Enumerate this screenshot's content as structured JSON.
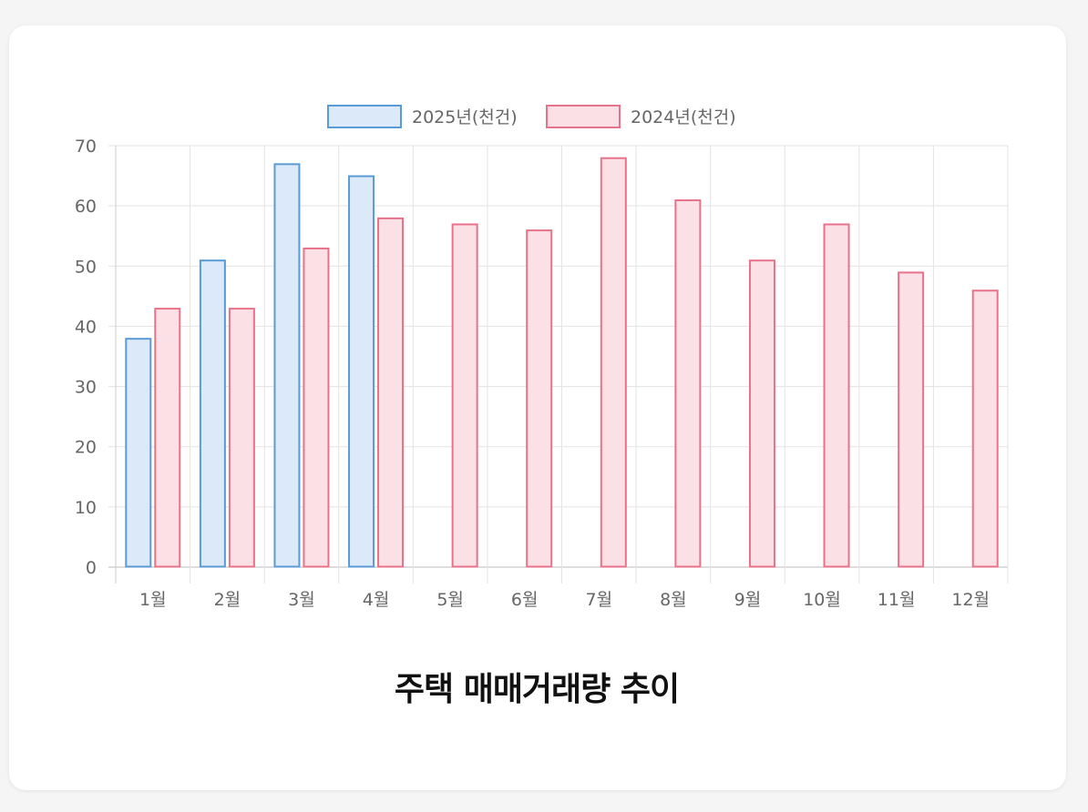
{
  "colors": {
    "series_2025_border": "#5b9bd5",
    "series_2025_fill": "#dbe9f8",
    "series_2024_border": "#e8728a",
    "series_2024_fill": "#fbe1e6",
    "grid": "#e3e3e3",
    "axis": "#cccccc",
    "tick_text": "#666666"
  },
  "chart_data": {
    "type": "bar",
    "title": "주택 매매거래량 추이",
    "categories": [
      "1월",
      "2월",
      "3월",
      "4월",
      "5월",
      "6월",
      "7월",
      "8월",
      "9월",
      "10월",
      "11월",
      "12월"
    ],
    "series": [
      {
        "name": "2025년(천건)",
        "values": [
          38,
          51,
          67,
          65,
          null,
          null,
          null,
          null,
          null,
          null,
          null,
          null
        ]
      },
      {
        "name": "2024년(천건)",
        "values": [
          43,
          43,
          53,
          58,
          57,
          56,
          68,
          61,
          51,
          57,
          49,
          46
        ]
      }
    ],
    "ylim": [
      0,
      70
    ],
    "yticks": [
      0,
      10,
      20,
      30,
      40,
      50,
      60,
      70
    ],
    "grid": true,
    "legend_position": "top-center"
  }
}
